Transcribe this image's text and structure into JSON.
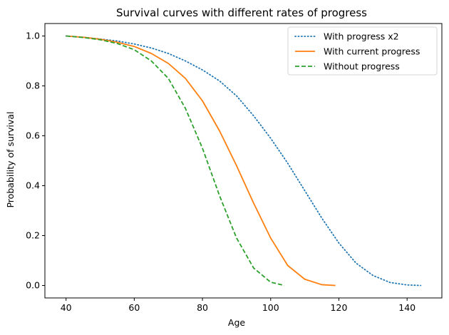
{
  "chart_data": {
    "type": "line",
    "title": "Survival curves with different rates of progress",
    "xlabel": "Age",
    "ylabel": "Probability of survival",
    "xlim": [
      33.8,
      150.2
    ],
    "ylim": [
      -0.05,
      1.05
    ],
    "xticks": [
      40,
      60,
      80,
      100,
      120,
      140
    ],
    "yticks": [
      0.0,
      0.2,
      0.4,
      0.6,
      0.8,
      1.0
    ],
    "xtick_labels": [
      "40",
      "60",
      "80",
      "100",
      "120",
      "140"
    ],
    "ytick_labels": [
      "0.0",
      "0.2",
      "0.4",
      "0.6",
      "0.8",
      "1.0"
    ],
    "grid": false,
    "legend_position": "top-right",
    "series": [
      {
        "name": "With progress x2",
        "color": "#1f77b4",
        "style": "dotted",
        "x": [
          40,
          45,
          50,
          55,
          60,
          65,
          70,
          75,
          80,
          85,
          90,
          95,
          100,
          105,
          110,
          115,
          120,
          125,
          130,
          135,
          140,
          144
        ],
        "y": [
          1.0,
          0.995,
          0.988,
          0.98,
          0.968,
          0.952,
          0.93,
          0.9,
          0.864,
          0.82,
          0.76,
          0.68,
          0.59,
          0.49,
          0.38,
          0.27,
          0.17,
          0.09,
          0.04,
          0.012,
          0.002,
          0.0
        ]
      },
      {
        "name": "With current progress",
        "color": "#ff7f0e",
        "style": "solid",
        "x": [
          40,
          45,
          50,
          55,
          60,
          65,
          70,
          75,
          80,
          85,
          90,
          95,
          100,
          105,
          110,
          115,
          119
        ],
        "y": [
          1.0,
          0.995,
          0.987,
          0.975,
          0.958,
          0.93,
          0.89,
          0.83,
          0.74,
          0.62,
          0.48,
          0.33,
          0.19,
          0.08,
          0.025,
          0.003,
          0.0
        ]
      },
      {
        "name": "Without progress",
        "color": "#2ca02c",
        "style": "dashed",
        "x": [
          40,
          45,
          50,
          55,
          60,
          65,
          70,
          75,
          80,
          85,
          90,
          95,
          100,
          104
        ],
        "y": [
          1.0,
          0.994,
          0.985,
          0.97,
          0.945,
          0.9,
          0.83,
          0.71,
          0.55,
          0.36,
          0.19,
          0.07,
          0.013,
          0.0
        ]
      }
    ]
  }
}
